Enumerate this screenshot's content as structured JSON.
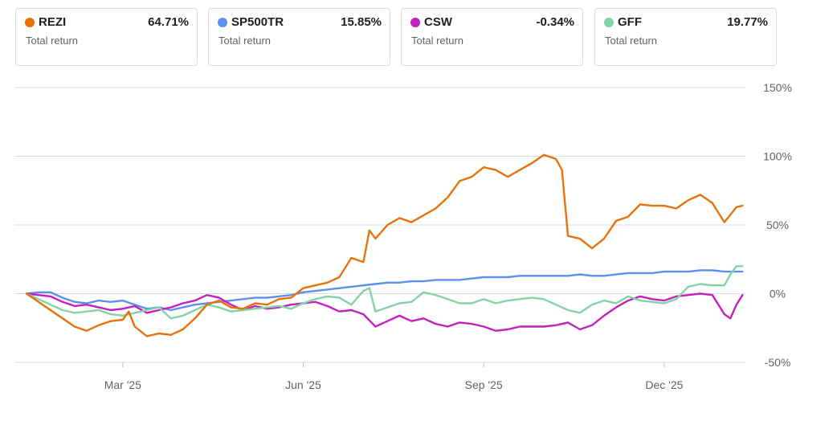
{
  "cards": [
    {
      "ticker": "REZI",
      "value": "64.71%",
      "label": "Total return",
      "color": "#e8710a"
    },
    {
      "ticker": "SP500TR",
      "value": "15.85%",
      "label": "Total return",
      "color": "#5b8ff0"
    },
    {
      "ticker": "CSW",
      "value": "-0.34%",
      "label": "Total return",
      "color": "#c41fbf"
    },
    {
      "ticker": "GFF",
      "value": "19.77%",
      "label": "Total return",
      "color": "#81d4a3"
    }
  ],
  "chart_data": {
    "type": "line",
    "y_ticks": [
      {
        "v": 150,
        "label": "150%"
      },
      {
        "v": 100,
        "label": "100%"
      },
      {
        "v": 50,
        "label": "50%"
      },
      {
        "v": 0,
        "label": "0%"
      },
      {
        "v": -50,
        "label": "-50%"
      }
    ],
    "x_ticks": [
      {
        "t": 1.8,
        "label": "Mar '25"
      },
      {
        "t": 4.8,
        "label": "Jun '25"
      },
      {
        "t": 7.8,
        "label": "Sep '25"
      },
      {
        "t": 10.8,
        "label": "Dec '25"
      }
    ],
    "ylim": [
      -50,
      150
    ],
    "xlim": [
      0,
      12.15
    ],
    "grid": true,
    "series": [
      {
        "name": "SP500TR",
        "color": "#5b8ff0",
        "points": [
          [
            0.2,
            0
          ],
          [
            0.4,
            1
          ],
          [
            0.6,
            1
          ],
          [
            0.8,
            -3
          ],
          [
            1.0,
            -6
          ],
          [
            1.2,
            -7
          ],
          [
            1.4,
            -5
          ],
          [
            1.6,
            -6
          ],
          [
            1.8,
            -5
          ],
          [
            2.0,
            -8
          ],
          [
            2.2,
            -11
          ],
          [
            2.4,
            -10
          ],
          [
            2.6,
            -12
          ],
          [
            2.8,
            -10
          ],
          [
            3.0,
            -8
          ],
          [
            3.2,
            -7
          ],
          [
            3.4,
            -6
          ],
          [
            3.6,
            -5
          ],
          [
            3.8,
            -4
          ],
          [
            4.0,
            -3
          ],
          [
            4.2,
            -3
          ],
          [
            4.4,
            -2
          ],
          [
            4.6,
            -1
          ],
          [
            4.8,
            1
          ],
          [
            5.0,
            2
          ],
          [
            5.2,
            3
          ],
          [
            5.4,
            4
          ],
          [
            5.6,
            5
          ],
          [
            5.8,
            6
          ],
          [
            6.0,
            7
          ],
          [
            6.2,
            8
          ],
          [
            6.4,
            8
          ],
          [
            6.6,
            9
          ],
          [
            6.8,
            9
          ],
          [
            7.0,
            10
          ],
          [
            7.2,
            10
          ],
          [
            7.4,
            10
          ],
          [
            7.6,
            11
          ],
          [
            7.8,
            12
          ],
          [
            8.0,
            12
          ],
          [
            8.2,
            12
          ],
          [
            8.4,
            13
          ],
          [
            8.6,
            13
          ],
          [
            8.8,
            13
          ],
          [
            9.0,
            13
          ],
          [
            9.2,
            13
          ],
          [
            9.4,
            14
          ],
          [
            9.6,
            13
          ],
          [
            9.8,
            13
          ],
          [
            10.0,
            14
          ],
          [
            10.2,
            15
          ],
          [
            10.4,
            15
          ],
          [
            10.6,
            15
          ],
          [
            10.8,
            16
          ],
          [
            11.0,
            16
          ],
          [
            11.2,
            16
          ],
          [
            11.4,
            17
          ],
          [
            11.6,
            17
          ],
          [
            11.8,
            16
          ],
          [
            12.0,
            16
          ],
          [
            12.1,
            16
          ]
        ]
      },
      {
        "name": "CSW",
        "color": "#c41fbf",
        "points": [
          [
            0.2,
            0
          ],
          [
            0.4,
            -1
          ],
          [
            0.6,
            -2
          ],
          [
            0.8,
            -6
          ],
          [
            1.0,
            -9
          ],
          [
            1.2,
            -8
          ],
          [
            1.4,
            -10
          ],
          [
            1.6,
            -12
          ],
          [
            1.8,
            -11
          ],
          [
            2.0,
            -9
          ],
          [
            2.2,
            -14
          ],
          [
            2.4,
            -12
          ],
          [
            2.6,
            -10
          ],
          [
            2.8,
            -7
          ],
          [
            3.0,
            -5
          ],
          [
            3.2,
            -1
          ],
          [
            3.4,
            -3
          ],
          [
            3.6,
            -8
          ],
          [
            3.8,
            -12
          ],
          [
            4.0,
            -9
          ],
          [
            4.2,
            -11
          ],
          [
            4.4,
            -10
          ],
          [
            4.6,
            -8
          ],
          [
            4.8,
            -7
          ],
          [
            5.0,
            -6
          ],
          [
            5.2,
            -9
          ],
          [
            5.4,
            -13
          ],
          [
            5.6,
            -12
          ],
          [
            5.8,
            -15
          ],
          [
            6.0,
            -24
          ],
          [
            6.2,
            -20
          ],
          [
            6.4,
            -16
          ],
          [
            6.6,
            -20
          ],
          [
            6.8,
            -18
          ],
          [
            7.0,
            -22
          ],
          [
            7.2,
            -24
          ],
          [
            7.4,
            -21
          ],
          [
            7.6,
            -22
          ],
          [
            7.8,
            -24
          ],
          [
            8.0,
            -27
          ],
          [
            8.2,
            -26
          ],
          [
            8.4,
            -24
          ],
          [
            8.6,
            -24
          ],
          [
            8.8,
            -24
          ],
          [
            9.0,
            -23
          ],
          [
            9.2,
            -21
          ],
          [
            9.4,
            -26
          ],
          [
            9.6,
            -23
          ],
          [
            9.8,
            -16
          ],
          [
            10.0,
            -10
          ],
          [
            10.2,
            -5
          ],
          [
            10.4,
            -2
          ],
          [
            10.6,
            -4
          ],
          [
            10.8,
            -5
          ],
          [
            11.0,
            -2
          ],
          [
            11.2,
            -1
          ],
          [
            11.4,
            0
          ],
          [
            11.6,
            -1
          ],
          [
            11.8,
            -15
          ],
          [
            11.9,
            -18
          ],
          [
            12.0,
            -8
          ],
          [
            12.1,
            -1
          ]
        ]
      },
      {
        "name": "GFF",
        "color": "#81d4a3",
        "points": [
          [
            0.2,
            0
          ],
          [
            0.4,
            -4
          ],
          [
            0.6,
            -8
          ],
          [
            0.8,
            -12
          ],
          [
            1.0,
            -14
          ],
          [
            1.2,
            -13
          ],
          [
            1.4,
            -12
          ],
          [
            1.6,
            -15
          ],
          [
            1.8,
            -16
          ],
          [
            2.0,
            -14
          ],
          [
            2.2,
            -12
          ],
          [
            2.4,
            -10
          ],
          [
            2.6,
            -18
          ],
          [
            2.8,
            -16
          ],
          [
            3.0,
            -12
          ],
          [
            3.2,
            -8
          ],
          [
            3.4,
            -10
          ],
          [
            3.6,
            -13
          ],
          [
            3.8,
            -12
          ],
          [
            4.0,
            -11
          ],
          [
            4.2,
            -10
          ],
          [
            4.4,
            -9
          ],
          [
            4.6,
            -11
          ],
          [
            4.8,
            -7
          ],
          [
            5.0,
            -4
          ],
          [
            5.2,
            -2
          ],
          [
            5.4,
            -3
          ],
          [
            5.6,
            -8
          ],
          [
            5.8,
            2
          ],
          [
            5.9,
            4
          ],
          [
            6.0,
            -13
          ],
          [
            6.2,
            -10
          ],
          [
            6.4,
            -7
          ],
          [
            6.6,
            -6
          ],
          [
            6.8,
            1
          ],
          [
            7.0,
            -1
          ],
          [
            7.2,
            -4
          ],
          [
            7.4,
            -7
          ],
          [
            7.6,
            -7
          ],
          [
            7.8,
            -4
          ],
          [
            8.0,
            -7
          ],
          [
            8.2,
            -5
          ],
          [
            8.4,
            -4
          ],
          [
            8.6,
            -3
          ],
          [
            8.8,
            -4
          ],
          [
            9.0,
            -8
          ],
          [
            9.2,
            -12
          ],
          [
            9.4,
            -14
          ],
          [
            9.6,
            -8
          ],
          [
            9.8,
            -5
          ],
          [
            10.0,
            -7
          ],
          [
            10.2,
            -2
          ],
          [
            10.4,
            -5
          ],
          [
            10.6,
            -6
          ],
          [
            10.8,
            -7
          ],
          [
            11.0,
            -4
          ],
          [
            11.2,
            5
          ],
          [
            11.4,
            7
          ],
          [
            11.6,
            6
          ],
          [
            11.8,
            6
          ],
          [
            11.9,
            14
          ],
          [
            12.0,
            20
          ],
          [
            12.1,
            20
          ]
        ]
      },
      {
        "name": "REZI",
        "color": "#e8710a",
        "points": [
          [
            0.2,
            0
          ],
          [
            0.4,
            -6
          ],
          [
            0.6,
            -12
          ],
          [
            0.8,
            -18
          ],
          [
            1.0,
            -24
          ],
          [
            1.2,
            -27
          ],
          [
            1.4,
            -23
          ],
          [
            1.6,
            -20
          ],
          [
            1.8,
            -19
          ],
          [
            1.9,
            -13
          ],
          [
            2.0,
            -24
          ],
          [
            2.2,
            -31
          ],
          [
            2.4,
            -29
          ],
          [
            2.6,
            -30
          ],
          [
            2.8,
            -26
          ],
          [
            3.0,
            -18
          ],
          [
            3.2,
            -8
          ],
          [
            3.4,
            -5
          ],
          [
            3.6,
            -10
          ],
          [
            3.8,
            -11
          ],
          [
            4.0,
            -7
          ],
          [
            4.2,
            -8
          ],
          [
            4.4,
            -4
          ],
          [
            4.6,
            -3
          ],
          [
            4.8,
            4
          ],
          [
            5.0,
            6
          ],
          [
            5.2,
            8
          ],
          [
            5.4,
            12
          ],
          [
            5.6,
            26
          ],
          [
            5.8,
            23
          ],
          [
            5.9,
            46
          ],
          [
            6.0,
            40
          ],
          [
            6.2,
            50
          ],
          [
            6.4,
            55
          ],
          [
            6.6,
            52
          ],
          [
            6.8,
            57
          ],
          [
            7.0,
            62
          ],
          [
            7.2,
            70
          ],
          [
            7.4,
            82
          ],
          [
            7.6,
            85
          ],
          [
            7.8,
            92
          ],
          [
            8.0,
            90
          ],
          [
            8.2,
            85
          ],
          [
            8.4,
            90
          ],
          [
            8.6,
            95
          ],
          [
            8.8,
            101
          ],
          [
            9.0,
            98
          ],
          [
            9.1,
            90
          ],
          [
            9.2,
            42
          ],
          [
            9.4,
            40
          ],
          [
            9.6,
            33
          ],
          [
            9.8,
            40
          ],
          [
            10.0,
            53
          ],
          [
            10.2,
            56
          ],
          [
            10.4,
            65
          ],
          [
            10.6,
            64
          ],
          [
            10.8,
            64
          ],
          [
            11.0,
            62
          ],
          [
            11.2,
            68
          ],
          [
            11.4,
            72
          ],
          [
            11.6,
            66
          ],
          [
            11.8,
            52
          ],
          [
            12.0,
            63
          ],
          [
            12.1,
            64
          ]
        ]
      }
    ]
  }
}
